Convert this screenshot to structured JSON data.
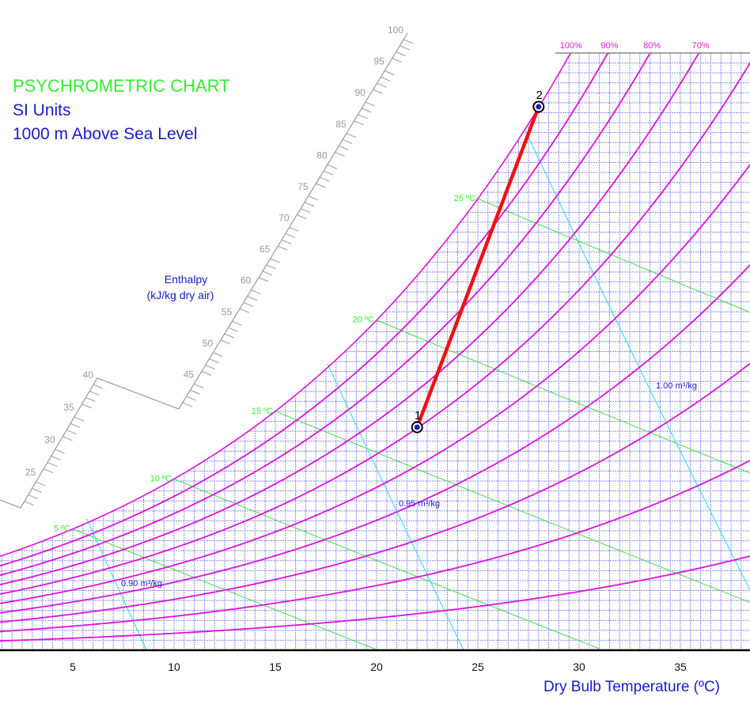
{
  "chart_data": {
    "type": "line",
    "title": "PSYCHROMETRIC CHART",
    "subtitle_lines": [
      "SI Units",
      "1000 m Above Sea Level"
    ],
    "xlabel": "Dry Bulb Temperature (ºC)",
    "xlim": [
      1.4,
      38.4
    ],
    "ylim_humidity_ratio": [
      0,
      0.03
    ],
    "altitude_m": 1000,
    "x_ticks": [
      "5",
      "10",
      "15",
      "20",
      "25",
      "30",
      "35"
    ],
    "x_tick_values": [
      5,
      10,
      15,
      20,
      25,
      30,
      35
    ],
    "grid": true,
    "relative_humidity_curves": [
      100,
      90,
      80,
      70,
      60,
      50,
      40,
      30,
      20,
      10
    ],
    "rh_labels": [
      "100%",
      "90%",
      "80%",
      "70%",
      "6"
    ],
    "wet_bulb_lines": [
      5,
      10,
      15,
      20,
      25
    ],
    "wet_bulb_labels": [
      "5 ºC",
      "10 ºC",
      "15 ºC",
      "20 ºC",
      "25 ºC"
    ],
    "volume_lines": [
      0.9,
      0.95,
      1.0
    ],
    "volume_labels": [
      "0.90 m³/kg",
      "0.95 m³/kg",
      "1.00 m³/kg"
    ],
    "enthalpy_scale": {
      "title": "Enthalpy",
      "unit": "(kJ/kg dry air)",
      "range": [
        20,
        100
      ],
      "labels": [
        "25",
        "30",
        "35",
        "40",
        "45",
        "50",
        "55",
        "60",
        "65",
        "70",
        "75",
        "80",
        "85",
        "90",
        "95",
        "100"
      ]
    },
    "process": {
      "points": [
        {
          "label": "1",
          "dry_bulb_c": 22,
          "humidity_ratio": 0.0112
        },
        {
          "label": "2",
          "dry_bulb_c": 28,
          "humidity_ratio": 0.0273
        }
      ],
      "line_color": "#ee1111"
    },
    "colors": {
      "rh": "#dd11dd",
      "wet_bulb": "#44dd44",
      "volume": "#44ddee",
      "grid": "#8888ee",
      "title": "#33ee33",
      "text": "#1a1acc"
    }
  }
}
